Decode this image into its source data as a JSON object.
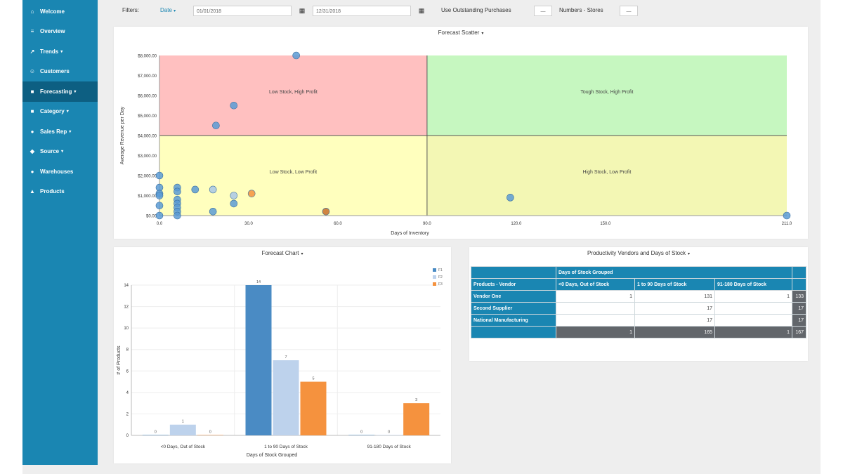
{
  "sidebar": {
    "items": [
      {
        "label": "Welcome",
        "icon": "home-icon",
        "glyph": "⌂",
        "caret": ""
      },
      {
        "label": "Overview",
        "icon": "list-icon",
        "glyph": "≡",
        "caret": ""
      },
      {
        "label": "Trends",
        "icon": "trend-icon",
        "glyph": "↗",
        "caret": "▾"
      },
      {
        "label": "Customers",
        "icon": "users-icon",
        "glyph": "☺",
        "caret": ""
      },
      {
        "label": "Forecasting",
        "icon": "forecast-icon",
        "glyph": "■",
        "caret": "▾"
      },
      {
        "label": "Category",
        "icon": "category-icon",
        "glyph": "■",
        "caret": "▾"
      },
      {
        "label": "Sales Rep",
        "icon": "sales-rep-icon",
        "glyph": "●",
        "caret": "▾"
      },
      {
        "label": "Source",
        "icon": "source-icon",
        "glyph": "◆",
        "caret": "▾"
      },
      {
        "label": "Warehouses",
        "icon": "warehouse-icon",
        "glyph": "●",
        "caret": ""
      },
      {
        "label": "Products",
        "icon": "products-icon",
        "glyph": "▲",
        "caret": ""
      }
    ],
    "active_index": 4
  },
  "filters": {
    "label": "Filters:",
    "date_type": "Date",
    "date_from": "01/01/2018",
    "date_to": "12/31/2018",
    "dropdown1_label": "Use Outstanding Purchases",
    "dropdown1_value": "—",
    "dropdown2_label": "Numbers - Stores",
    "dropdown2_value": "—"
  },
  "scatter": {
    "title": "Forecast Scatter",
    "quadrant_labels": [
      "Low Stock, High Profit",
      "Tough Stock, High Profit",
      "Low Stock, Low Profit",
      "High Stock, Low Profit"
    ],
    "quadrant_colors": [
      "#ffc0c0",
      "#c6f7c0",
      "#ffffbe",
      "#f3f7b4"
    ]
  },
  "bar_panel": {
    "title": "Forecast Chart"
  },
  "table_panel": {
    "title": "Productivity Vendors and Days of Stock",
    "group_header": "Days of Stock Grouped",
    "row_header": "Products - Vendor",
    "col_headers": [
      "<0 Days, Out of Stock",
      "1 to 90 Days of Stock",
      "91-180 Days of Stock"
    ],
    "rows": [
      {
        "label": "Vendor One",
        "values": [
          "1",
          "131",
          "1"
        ],
        "total": "133"
      },
      {
        "label": "Second Supplier",
        "values": [
          "",
          "17",
          ""
        ],
        "total": "17"
      },
      {
        "label": "National Manufacturing",
        "values": [
          "",
          "17",
          ""
        ],
        "total": "17"
      }
    ],
    "totals": [
      "1",
      "165",
      "1",
      "167"
    ]
  },
  "chart_data": [
    {
      "type": "scatter",
      "title": "Forecast Scatter",
      "xlabel": "Days of Inventory",
      "ylabel": "Average Revenue per Day",
      "xlim": [
        0,
        211
      ],
      "ylim": [
        0,
        8000
      ],
      "x_ticks": [
        "0.0",
        "30.0",
        "60.0",
        "90.0",
        "120.0",
        "150.0",
        "211.0"
      ],
      "y_ticks": [
        "$0.00",
        "$1,000.00",
        "$2,000.00",
        "$3,000.00",
        "$4,000.00",
        "$5,000.00",
        "$6,000.00",
        "$7,000.00",
        "$8,000.00"
      ],
      "quadrant_split": {
        "x": 90,
        "y": 4000
      },
      "points": [
        {
          "x": 46,
          "y": 8000,
          "color": "#5b9bd5"
        },
        {
          "x": 25,
          "y": 5500,
          "color": "#5b9bd5"
        },
        {
          "x": 19,
          "y": 4500,
          "color": "#5b9bd5"
        },
        {
          "x": 0,
          "y": 2000,
          "color": "#5b9bd5"
        },
        {
          "x": 0,
          "y": 1400,
          "color": "#5b9bd5"
        },
        {
          "x": 0,
          "y": 1100,
          "color": "#5b9bd5"
        },
        {
          "x": 0,
          "y": 1000,
          "color": "#5b9bd5"
        },
        {
          "x": 0,
          "y": 500,
          "color": "#5b9bd5"
        },
        {
          "x": 0,
          "y": 0,
          "color": "#5b9bd5"
        },
        {
          "x": 6,
          "y": 1400,
          "color": "#5b9bd5"
        },
        {
          "x": 6,
          "y": 1200,
          "color": "#5b9bd5"
        },
        {
          "x": 6,
          "y": 800,
          "color": "#5b9bd5"
        },
        {
          "x": 6,
          "y": 600,
          "color": "#5b9bd5"
        },
        {
          "x": 6,
          "y": 400,
          "color": "#5b9bd5"
        },
        {
          "x": 6,
          "y": 200,
          "color": "#5b9bd5"
        },
        {
          "x": 6,
          "y": 0,
          "color": "#5b9bd5"
        },
        {
          "x": 12,
          "y": 1300,
          "color": "#5b9bd5"
        },
        {
          "x": 18,
          "y": 1300,
          "color": "#a9c8e8"
        },
        {
          "x": 18,
          "y": 200,
          "color": "#5b9bd5"
        },
        {
          "x": 25,
          "y": 1000,
          "color": "#a9c8e8"
        },
        {
          "x": 25,
          "y": 600,
          "color": "#5b9bd5"
        },
        {
          "x": 31,
          "y": 1100,
          "color": "#f5923e"
        },
        {
          "x": 56,
          "y": 200,
          "color": "#c8702b"
        },
        {
          "x": 118,
          "y": 900,
          "color": "#5b9bd5"
        },
        {
          "x": 211,
          "y": 0,
          "color": "#5b9bd5"
        }
      ]
    },
    {
      "type": "bar",
      "title": "Forecast Chart",
      "xlabel": "Days of Stock Grouped",
      "ylabel": "# of Products",
      "ylim": [
        0,
        14
      ],
      "y_ticks": [
        "0",
        "2",
        "4",
        "6",
        "8",
        "10",
        "12",
        "14"
      ],
      "categories": [
        "<0 Days, Out of Stock",
        "1 to 90 Days of Stock",
        "91-180 Days of Stock"
      ],
      "legend": [
        "F1",
        "F2",
        "F3"
      ],
      "series": [
        {
          "name": "F1",
          "color": "#4a8bc4",
          "values": [
            0,
            14,
            0
          ]
        },
        {
          "name": "F2",
          "color": "#bdd2ec",
          "values": [
            1,
            7,
            0
          ]
        },
        {
          "name": "F3",
          "color": "#f5923e",
          "values": [
            0,
            5,
            3
          ]
        }
      ]
    }
  ]
}
